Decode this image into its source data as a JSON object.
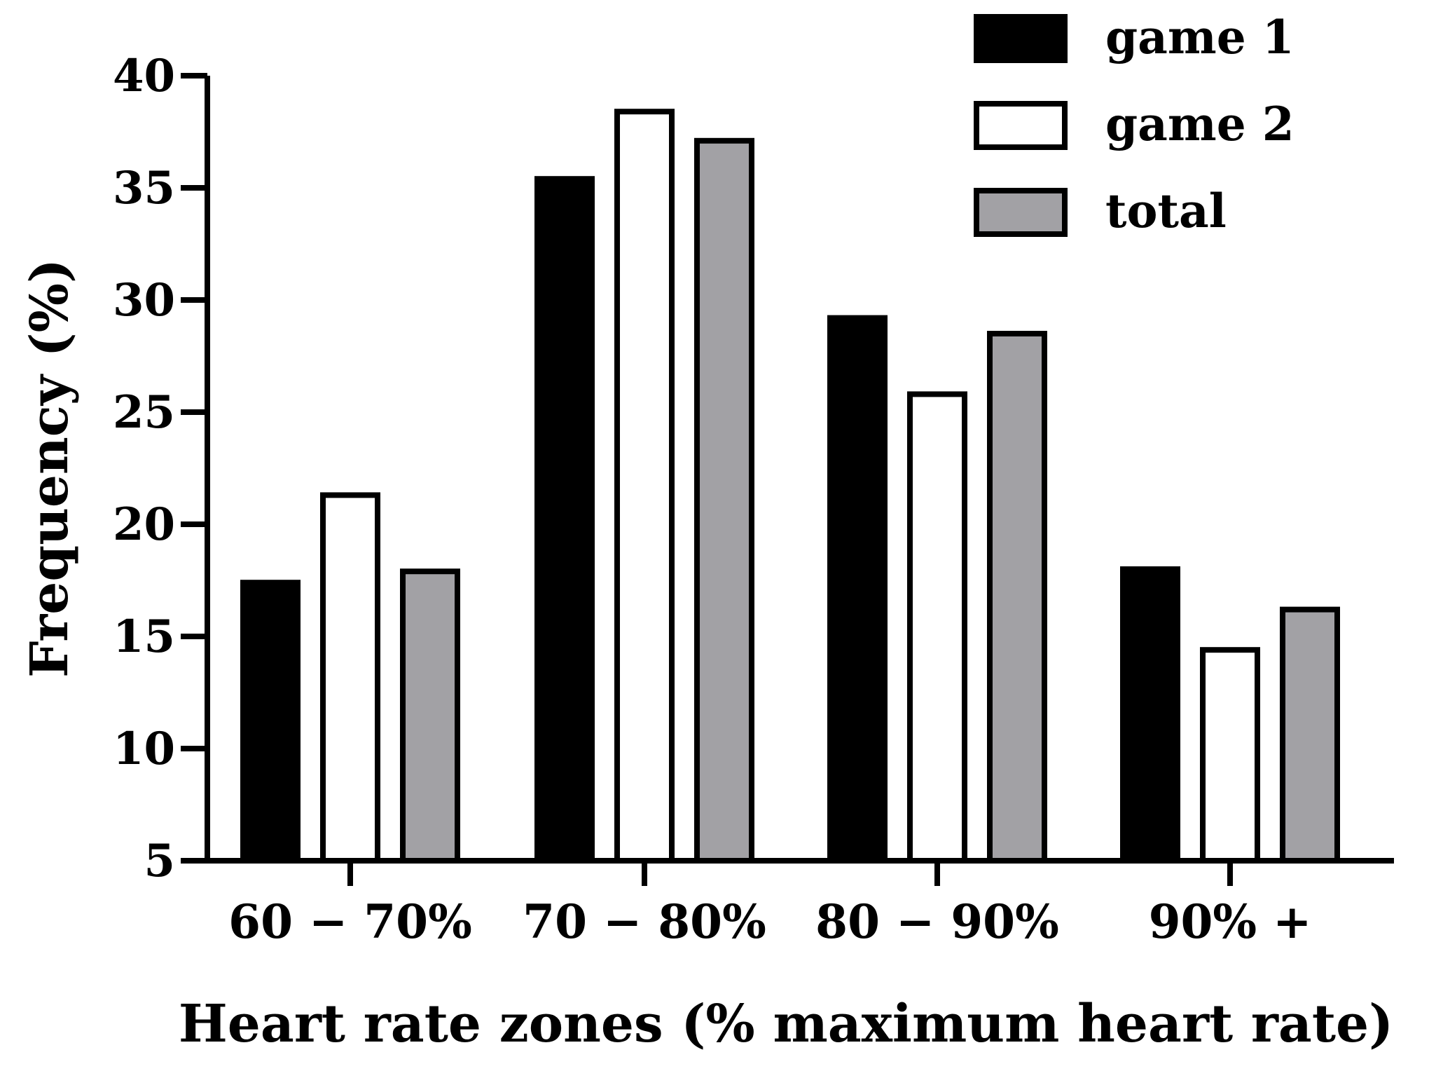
{
  "chart_data": {
    "type": "bar",
    "title": "",
    "xlabel": "Heart rate zones (% maximum heart rate)",
    "ylabel": "Frequency (%)",
    "ylim": [
      5,
      40
    ],
    "yticks": [
      5,
      10,
      15,
      20,
      25,
      30,
      35,
      40
    ],
    "ytick_labels": [
      "5",
      "10",
      "15",
      "20",
      "25",
      "30",
      "35",
      "40"
    ],
    "categories": [
      "60 − 70%",
      "70 − 80%",
      "80 − 90%",
      "90% +"
    ],
    "grid": false,
    "legend_position": "top-right",
    "series": [
      {
        "name": "game 1",
        "color": "#000000",
        "values": [
          17.4,
          35.4,
          29.2,
          18.0
        ]
      },
      {
        "name": "game 2",
        "color": "#ffffff",
        "values": [
          21.3,
          38.4,
          25.8,
          14.4
        ]
      },
      {
        "name": "total",
        "color": "#a2a1a5",
        "values": [
          17.9,
          37.1,
          28.5,
          16.2
        ]
      }
    ]
  }
}
